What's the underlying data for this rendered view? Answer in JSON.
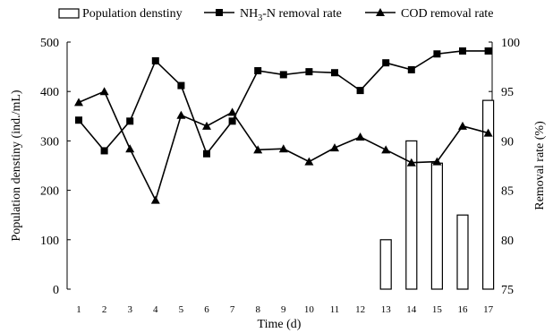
{
  "chart_data": {
    "type": "bar+line",
    "categories": [
      "1",
      "2",
      "3",
      "4",
      "5",
      "6",
      "7",
      "8",
      "9",
      "10",
      "11",
      "12",
      "13",
      "14",
      "15",
      "16",
      "17"
    ],
    "xlabel": "Time (d)",
    "y_left": {
      "label": "Population denstiny (ind./mL)",
      "range": [
        0,
        500
      ],
      "ticks": [
        "0",
        "100",
        "200",
        "300",
        "400",
        "500"
      ]
    },
    "y_right": {
      "label": "Removal rate (%)",
      "range": [
        75,
        100
      ],
      "ticks": [
        "75",
        "80",
        "85",
        "90",
        "95",
        "100"
      ]
    },
    "legend": {
      "position": "top",
      "bar_label": "Population denstiny",
      "nh3_label_pre": "NH",
      "nh3_label_sub": "3",
      "nh3_label_post": "-N removal rate",
      "cod_label": "COD removal rate"
    },
    "series": [
      {
        "name": "Population denstiny",
        "type": "bar",
        "axis": "left",
        "values": [
          null,
          null,
          null,
          null,
          null,
          null,
          null,
          null,
          null,
          null,
          null,
          null,
          100,
          300,
          255,
          150,
          382
        ]
      },
      {
        "name": "NH3-N removal rate",
        "type": "line",
        "axis": "right",
        "marker": "square",
        "values": [
          92.1,
          89.0,
          92.0,
          98.1,
          95.6,
          88.7,
          92.0,
          97.1,
          96.7,
          97.0,
          96.9,
          95.1,
          97.9,
          97.2,
          98.8,
          99.1,
          99.1
        ]
      },
      {
        "name": "COD removal rate",
        "type": "line",
        "axis": "right",
        "marker": "triangle",
        "values": [
          93.9,
          95.0,
          89.2,
          84.0,
          92.6,
          91.5,
          92.9,
          89.1,
          89.2,
          87.9,
          89.3,
          90.4,
          89.1,
          87.8,
          87.9,
          91.5,
          90.8
        ]
      }
    ],
    "grid": false
  }
}
